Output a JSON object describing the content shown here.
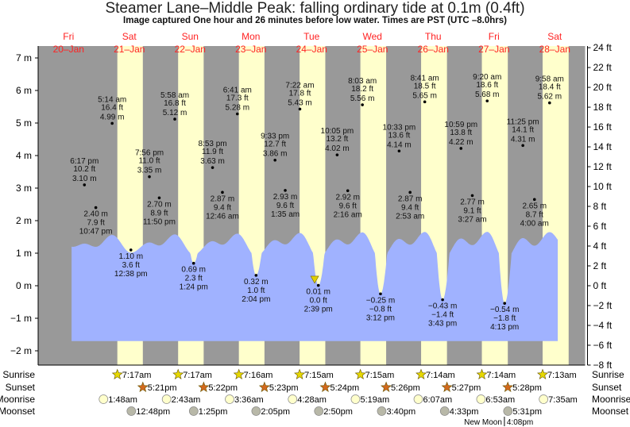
{
  "title": "Steamer Lane–Middle Peak: falling  ordinary tide at 0.1m (0.4ft)",
  "subtitle": "Image captured One hour and 26 minutes before low water. Times are PST (UTC –8.0hrs)",
  "colors": {
    "night": "#999999",
    "day": "#ffffcc",
    "water": "#a0b2ff",
    "day_label": "#ff2222",
    "sunrise": "#e6d800",
    "sunset": "#d2691e",
    "moonrise": "#ffffcc",
    "moonset": "#b8b8a8",
    "current_marker": "#e0d000"
  },
  "chart_data": {
    "type": "area",
    "title": "Steamer Lane–Middle Peak: falling  ordinary tide at 0.1m (0.4ft)",
    "days": [
      {
        "dow": "Fri",
        "date": "20–Jan"
      },
      {
        "dow": "Sat",
        "date": "21–Jan"
      },
      {
        "dow": "Sun",
        "date": "22–Jan"
      },
      {
        "dow": "Mon",
        "date": "23–Jan"
      },
      {
        "dow": "Tue",
        "date": "24–Jan"
      },
      {
        "dow": "Wed",
        "date": "25–Jan"
      },
      {
        "dow": "Thu",
        "date": "26–Jan"
      },
      {
        "dow": "Fri",
        "date": "27–Jan"
      },
      {
        "dow": "Sat",
        "date": "28–Jan"
      }
    ],
    "ylim_m": [
      -2,
      7.4
    ],
    "y_ticks_m": [
      "7 m",
      "6 m",
      "5 m",
      "4 m",
      "3 m",
      "2 m",
      "1 m",
      "0 m",
      "−1 m",
      "−2 m"
    ],
    "y_ticks_ft": [
      "24 ft",
      "22 ft",
      "20 ft",
      "18 ft",
      "16 ft",
      "14 ft",
      "12 ft",
      "10 ft",
      "8 ft",
      "6 ft",
      "4 ft",
      "2 ft",
      "0 ft",
      "−2 ft",
      "−4 ft",
      "−6 ft",
      "−8 ft"
    ],
    "extremes": [
      {
        "day": 0,
        "time": "6:17 pm",
        "hour": 18.28,
        "m": "3.10 m",
        "ft": "10.2 ft",
        "value": 3.1,
        "type": "high"
      },
      {
        "day": 0,
        "time": "10:47 pm",
        "hour": 22.78,
        "m": "2.40 m",
        "ft": "7.9 ft",
        "value": 2.4,
        "type": "low"
      },
      {
        "day": 1,
        "time": "5:14 am",
        "hour": 5.23,
        "m": "4.99 m",
        "ft": "16.4 ft",
        "value": 4.99,
        "type": "high"
      },
      {
        "day": 1,
        "time": "12:38 pm",
        "hour": 12.63,
        "m": "1.10 m",
        "ft": "3.6 ft",
        "value": 1.1,
        "type": "low"
      },
      {
        "day": 1,
        "time": "7:56 pm",
        "hour": 19.93,
        "m": "3.35 m",
        "ft": "11.0 ft",
        "value": 3.35,
        "type": "high"
      },
      {
        "day": 1,
        "time": "11:50 pm",
        "hour": 23.83,
        "m": "2.70 m",
        "ft": "8.9 ft",
        "value": 2.7,
        "type": "low"
      },
      {
        "day": 2,
        "time": "5:58 am",
        "hour": 5.97,
        "m": "5.12 m",
        "ft": "16.8 ft",
        "value": 5.12,
        "type": "high"
      },
      {
        "day": 2,
        "time": "1:24 pm",
        "hour": 13.4,
        "m": "0.69 m",
        "ft": "2.3 ft",
        "value": 0.69,
        "type": "low"
      },
      {
        "day": 2,
        "time": "8:53 pm",
        "hour": 20.88,
        "m": "3.63 m",
        "ft": "11.9 ft",
        "value": 3.63,
        "type": "high"
      },
      {
        "day": 3,
        "time": "12:46 am",
        "hour": 0.77,
        "m": "2.87 m",
        "ft": "9.4 ft",
        "value": 2.87,
        "type": "low"
      },
      {
        "day": 3,
        "time": "6:41 am",
        "hour": 6.68,
        "m": "5.28 m",
        "ft": "17.3 ft",
        "value": 5.28,
        "type": "high"
      },
      {
        "day": 3,
        "time": "2:04 pm",
        "hour": 14.07,
        "m": "0.32 m",
        "ft": "1.0 ft",
        "value": 0.32,
        "type": "low"
      },
      {
        "day": 3,
        "time": "9:33 pm",
        "hour": 21.55,
        "m": "3.86 m",
        "ft": "12.7 ft",
        "value": 3.86,
        "type": "high"
      },
      {
        "day": 4,
        "time": "1:35 am",
        "hour": 1.58,
        "m": "2.93 m",
        "ft": "9.6 ft",
        "value": 2.93,
        "type": "low"
      },
      {
        "day": 4,
        "time": "7:22 am",
        "hour": 7.37,
        "m": "5.43 m",
        "ft": "17.8 ft",
        "value": 5.43,
        "type": "high"
      },
      {
        "day": 4,
        "time": "2:39 pm",
        "hour": 14.65,
        "m": "0.01 m",
        "ft": "0.0 ft",
        "value": 0.01,
        "type": "low"
      },
      {
        "day": 4,
        "time": "10:05 pm",
        "hour": 22.08,
        "m": "4.02 m",
        "ft": "13.2 ft",
        "value": 4.02,
        "type": "high"
      },
      {
        "day": 5,
        "time": "2:16 am",
        "hour": 2.27,
        "m": "2.92 m",
        "ft": "9.6 ft",
        "value": 2.92,
        "type": "low"
      },
      {
        "day": 5,
        "time": "8:03 am",
        "hour": 8.05,
        "m": "5.56 m",
        "ft": "18.2 ft",
        "value": 5.56,
        "type": "high"
      },
      {
        "day": 5,
        "time": "3:12 pm",
        "hour": 15.2,
        "m": "−0.25 m",
        "ft": "−0.8 ft",
        "value": -0.25,
        "type": "low"
      },
      {
        "day": 5,
        "time": "10:33 pm",
        "hour": 22.55,
        "m": "4.14 m",
        "ft": "13.6 ft",
        "value": 4.14,
        "type": "high"
      },
      {
        "day": 6,
        "time": "2:53 am",
        "hour": 2.88,
        "m": "2.87 m",
        "ft": "9.4 ft",
        "value": 2.87,
        "type": "low"
      },
      {
        "day": 6,
        "time": "8:41 am",
        "hour": 8.68,
        "m": "5.65 m",
        "ft": "18.5 ft",
        "value": 5.65,
        "type": "high"
      },
      {
        "day": 6,
        "time": "3:43 pm",
        "hour": 15.72,
        "m": "−0.43 m",
        "ft": "−1.4 ft",
        "value": -0.43,
        "type": "low"
      },
      {
        "day": 6,
        "time": "10:59 pm",
        "hour": 22.98,
        "m": "4.22 m",
        "ft": "13.8 ft",
        "value": 4.22,
        "type": "high"
      },
      {
        "day": 7,
        "time": "3:27 am",
        "hour": 3.45,
        "m": "2.77 m",
        "ft": "9.1 ft",
        "value": 2.77,
        "type": "low"
      },
      {
        "day": 7,
        "time": "9:20 am",
        "hour": 9.33,
        "m": "5.68 m",
        "ft": "18.6 ft",
        "value": 5.68,
        "type": "high"
      },
      {
        "day": 7,
        "time": "4:13 pm",
        "hour": 16.22,
        "m": "−0.54 m",
        "ft": "−1.8 ft",
        "value": -0.54,
        "type": "low"
      },
      {
        "day": 7,
        "time": "11:25 pm",
        "hour": 23.42,
        "m": "4.31 m",
        "ft": "14.1 ft",
        "value": 4.31,
        "type": "high"
      },
      {
        "day": 8,
        "time": "4:00 am",
        "hour": 4.0,
        "m": "2.65 m",
        "ft": "8.7 ft",
        "value": 2.65,
        "type": "low"
      },
      {
        "day": 8,
        "time": "9:58 am",
        "hour": 9.97,
        "m": "5.62 m",
        "ft": "18.4 ft",
        "value": 5.62,
        "type": "high"
      }
    ],
    "current": {
      "day": 4,
      "hour": 13.2,
      "value": 0.1,
      "label": "falling  ordinary tide at 0.1m (0.4ft)"
    },
    "rows": {
      "labels": [
        "Sunrise",
        "Sunset",
        "Moonrise",
        "Moonset"
      ],
      "sunrise": [
        {
          "day": 1,
          "hour": 7.28,
          "time": "7:17am"
        },
        {
          "day": 2,
          "hour": 7.28,
          "time": "7:17am"
        },
        {
          "day": 3,
          "hour": 7.27,
          "time": "7:16am"
        },
        {
          "day": 4,
          "hour": 7.25,
          "time": "7:15am"
        },
        {
          "day": 5,
          "hour": 7.25,
          "time": "7:15am"
        },
        {
          "day": 6,
          "hour": 7.23,
          "time": "7:14am"
        },
        {
          "day": 7,
          "hour": 7.23,
          "time": "7:14am"
        },
        {
          "day": 8,
          "hour": 7.22,
          "time": "7:13am"
        }
      ],
      "sunset": [
        {
          "day": 1,
          "hour": 17.35,
          "time": "5:21pm"
        },
        {
          "day": 2,
          "hour": 17.37,
          "time": "5:22pm"
        },
        {
          "day": 3,
          "hour": 17.38,
          "time": "5:23pm"
        },
        {
          "day": 4,
          "hour": 17.4,
          "time": "5:24pm"
        },
        {
          "day": 5,
          "hour": 17.43,
          "time": "5:26pm"
        },
        {
          "day": 6,
          "hour": 17.45,
          "time": "5:27pm"
        },
        {
          "day": 7,
          "hour": 17.47,
          "time": "5:28pm"
        }
      ],
      "moonrise": [
        {
          "day": 1,
          "hour": 1.8,
          "time": "1:48am"
        },
        {
          "day": 2,
          "hour": 2.72,
          "time": "2:43am"
        },
        {
          "day": 3,
          "hour": 3.6,
          "time": "3:36am"
        },
        {
          "day": 4,
          "hour": 4.47,
          "time": "4:28am"
        },
        {
          "day": 5,
          "hour": 5.32,
          "time": "5:19am"
        },
        {
          "day": 6,
          "hour": 6.12,
          "time": "6:07am"
        },
        {
          "day": 7,
          "hour": 6.88,
          "time": "6:53am"
        },
        {
          "day": 8,
          "hour": 7.58,
          "time": "7:35am"
        }
      ],
      "moonset": [
        {
          "day": 1,
          "hour": 12.8,
          "time": "12:48pm"
        },
        {
          "day": 2,
          "hour": 13.42,
          "time": "1:25pm"
        },
        {
          "day": 3,
          "hour": 14.08,
          "time": "2:05pm"
        },
        {
          "day": 4,
          "hour": 14.83,
          "time": "2:50pm"
        },
        {
          "day": 5,
          "hour": 15.67,
          "time": "3:40pm"
        },
        {
          "day": 6,
          "hour": 16.55,
          "time": "4:33pm"
        },
        {
          "day": 7,
          "hour": 17.52,
          "time": "5:31pm"
        }
      ],
      "moon_phase": {
        "day": 7,
        "hour": 16.13,
        "name": "New Moon",
        "time": "4:08pm"
      }
    }
  }
}
